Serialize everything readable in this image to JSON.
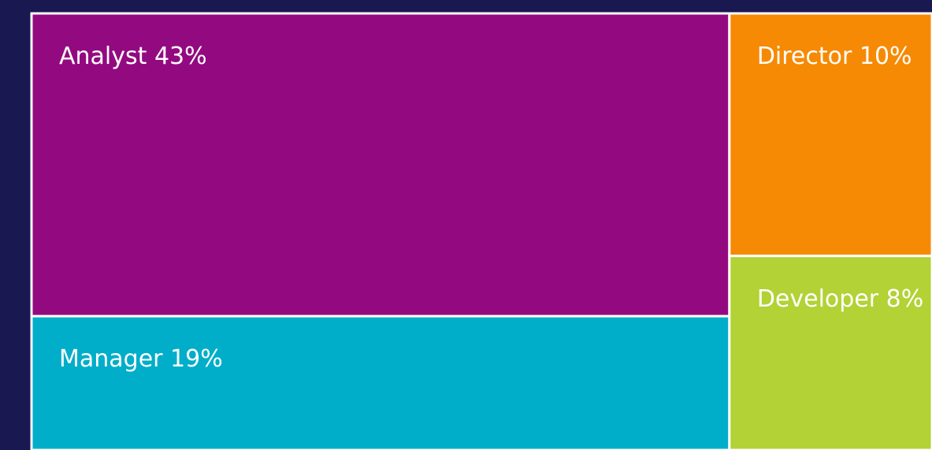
{
  "chart_data": {
    "type": "treemap",
    "categories": [
      "Analyst",
      "Manager",
      "Director",
      "Developer"
    ],
    "values": [
      43,
      19,
      10,
      8
    ],
    "value_labels": [
      "43%",
      "19%",
      "10%",
      "8%"
    ],
    "colors": [
      "#930a80",
      "#00aec9",
      "#f68a04",
      "#b2d235"
    ]
  }
}
